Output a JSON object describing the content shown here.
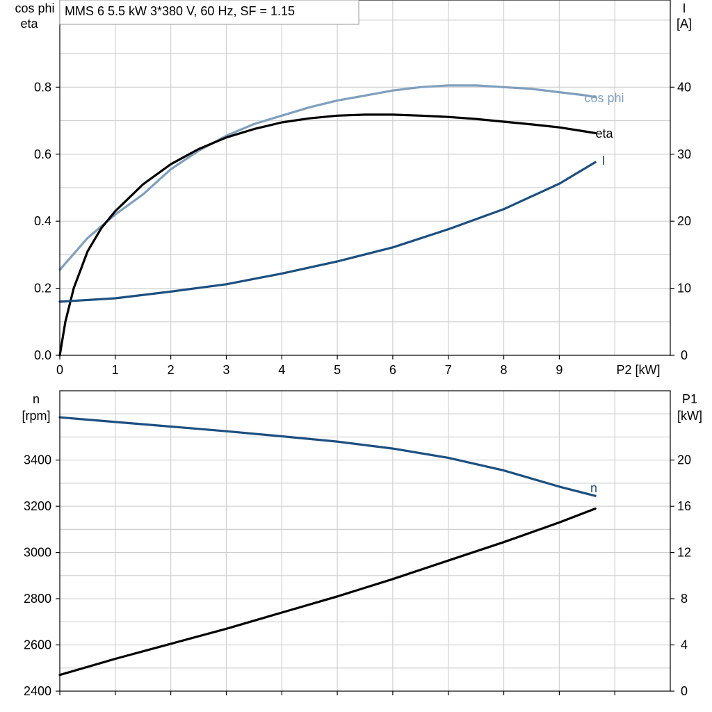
{
  "colors": {
    "cos_phi": "#7f9fbe",
    "eta": "#000000",
    "I": "#1c4f80",
    "n": "#1c4f80",
    "P1": "#000000",
    "grid": "#d0d0d0"
  },
  "chart_data": [
    {
      "type": "line",
      "title": "MMS 6   5.5 kW   3*380 V, 60 Hz, SF = 1.15",
      "xlabel": "P2 [kW]",
      "xlim": [
        0,
        11
      ],
      "xticks": [
        0,
        1,
        2,
        3,
        4,
        5,
        6,
        7,
        8,
        9
      ],
      "ylabel_left": [
        "cos phi",
        "eta"
      ],
      "ylim_left": [
        0,
        1.06
      ],
      "yticks_left": [
        "0.0",
        "0.2",
        "0.4",
        "0.6",
        "0.8"
      ],
      "ylabel_right": [
        "I",
        "[A]"
      ],
      "ylim_right": [
        0,
        53
      ],
      "yticks_right": [
        "0",
        "10",
        "20",
        "30",
        "40"
      ],
      "grid": true,
      "series": [
        {
          "name": "cos phi",
          "axis": "left",
          "color": "#7f9fbe",
          "x": [
            0,
            0.5,
            1,
            1.5,
            2,
            2.5,
            3,
            3.5,
            4,
            4.5,
            5,
            5.5,
            6,
            6.5,
            7,
            7.5,
            8,
            8.5,
            9,
            9.5,
            9.65
          ],
          "y": [
            0.255,
            0.35,
            0.42,
            0.48,
            0.555,
            0.61,
            0.655,
            0.69,
            0.715,
            0.74,
            0.76,
            0.775,
            0.79,
            0.8,
            0.805,
            0.805,
            0.8,
            0.795,
            0.785,
            0.775,
            0.77
          ]
        },
        {
          "name": "eta",
          "axis": "left",
          "color": "#000000",
          "x": [
            0,
            0.1,
            0.25,
            0.5,
            0.75,
            1,
            1.5,
            2,
            2.5,
            3,
            3.5,
            4,
            4.5,
            5,
            5.5,
            6,
            6.5,
            7,
            7.5,
            8,
            8.5,
            9,
            9.5,
            9.65
          ],
          "y": [
            0,
            0.1,
            0.2,
            0.31,
            0.38,
            0.43,
            0.51,
            0.57,
            0.615,
            0.65,
            0.675,
            0.695,
            0.707,
            0.715,
            0.718,
            0.718,
            0.715,
            0.711,
            0.705,
            0.697,
            0.689,
            0.68,
            0.667,
            0.663
          ]
        },
        {
          "name": "I",
          "axis": "right",
          "color": "#1c4f80",
          "x": [
            0,
            1,
            2,
            3,
            4,
            5,
            6,
            7,
            8,
            9,
            9.65
          ],
          "y": [
            8.0,
            8.5,
            9.5,
            10.6,
            12.2,
            14.0,
            16.1,
            18.8,
            21.8,
            25.6,
            28.8
          ]
        }
      ]
    },
    {
      "type": "line",
      "xlim": [
        0,
        11
      ],
      "ylabel_left": [
        "n",
        "[rpm]"
      ],
      "ylim_left": [
        2400,
        3700
      ],
      "yticks_left": [
        "2400",
        "2600",
        "2800",
        "3000",
        "3200",
        "3400"
      ],
      "ylabel_right": [
        "P1",
        "[kW]"
      ],
      "ylim_right": [
        0,
        26
      ],
      "yticks_right": [
        "0",
        "4",
        "8",
        "12",
        "16",
        "20"
      ],
      "grid": true,
      "series": [
        {
          "name": "n",
          "axis": "left",
          "color": "#1c4f80",
          "x": [
            0,
            1,
            2,
            3,
            4,
            5,
            6,
            7,
            8,
            9,
            9.65
          ],
          "y": [
            3585,
            3565,
            3545,
            3525,
            3503,
            3480,
            3450,
            3410,
            3355,
            3285,
            3245
          ]
        },
        {
          "name": "",
          "axis": "right",
          "color": "#000000",
          "x": [
            0,
            1,
            2,
            3,
            4,
            5,
            6,
            7,
            8,
            9,
            9.65
          ],
          "y": [
            1.4,
            2.8,
            4.1,
            5.4,
            6.8,
            8.2,
            9.7,
            11.3,
            12.9,
            14.6,
            15.8
          ]
        }
      ]
    }
  ]
}
